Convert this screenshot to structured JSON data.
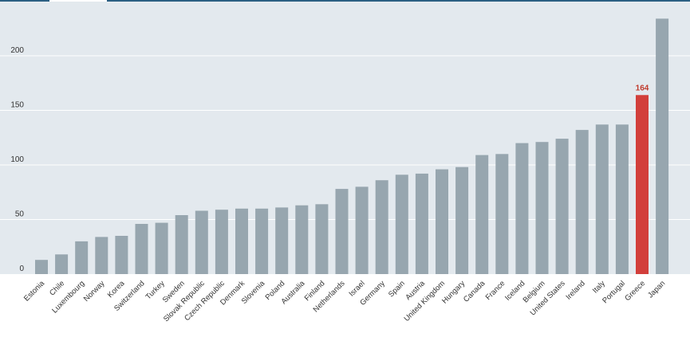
{
  "colors": {
    "plot_background": "#e3e9ee",
    "top_rule": "#2b5f82",
    "grid": "#ffffff",
    "bar": "#97a6af",
    "highlight_bar": "#d23f3b",
    "highlight_text": "#c0392b"
  },
  "chart_data": {
    "type": "bar",
    "title": "",
    "xlabel": "",
    "ylabel": "",
    "ylim": [
      0,
      235
    ],
    "yticks": [
      0,
      50,
      100,
      150,
      200
    ],
    "grid": true,
    "categories": [
      "Estonia",
      "Chile",
      "Luxembourg",
      "Norway",
      "Korea",
      "Switzerland",
      "Turkey",
      "Sweden",
      "Slovak Republic",
      "Czech Republic",
      "Denmark",
      "Slovenia",
      "Poland",
      "Australia",
      "Finland",
      "Netherlands",
      "Israel",
      "Germany",
      "Spain",
      "Austria",
      "United Kingdom",
      "Hungary",
      "Canada",
      "France",
      "Iceland",
      "Belgium",
      "United States",
      "Ireland",
      "Italy",
      "Portugal",
      "Greece",
      "Japan"
    ],
    "values": [
      13,
      18,
      30,
      34,
      35,
      46,
      47,
      54,
      58,
      59,
      60,
      60,
      61,
      63,
      64,
      78,
      80,
      86,
      91,
      92,
      96,
      98,
      109,
      110,
      120,
      121,
      124,
      132,
      137,
      137,
      164,
      234
    ],
    "highlight": {
      "category": "Greece",
      "label": "164"
    }
  }
}
